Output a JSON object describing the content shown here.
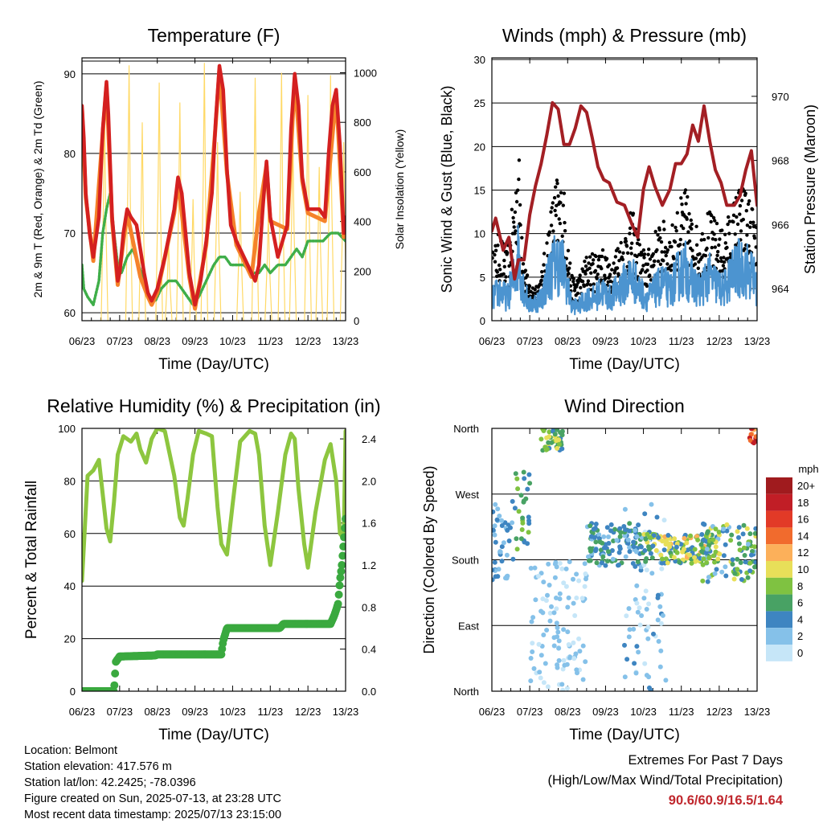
{
  "footer": {
    "location": "Location: Belmont",
    "elevation": "Station elevation: 417.576 m",
    "latlon": "Station lat/lon: 42.2425; -78.0396",
    "created": "Figure created on Sun, 2025-07-13, at 23:28 UTC",
    "recent": "Most recent data timestamp: 2025/07/13 23:15:00"
  },
  "extremes": {
    "title": "Extremes For Past 7 Days",
    "subtitle": "(High/Low/Max Wind/Total Precipitation)",
    "values": "90.6/60.9/16.5/1.64",
    "value_color": "#c0272d"
  },
  "chart_data": [
    {
      "type": "line",
      "title": "Temperature (F)",
      "xlabel": "Time (Day/UTC)",
      "ylabel": "2m & 9m T (Red, Orange) & 2m Td (Green)",
      "y2label": "Solar Insolation (Yellow)",
      "xlim": [
        6,
        13
      ],
      "xticks": [
        "06/23",
        "07/23",
        "08/23",
        "09/23",
        "10/23",
        "11/23",
        "12/23",
        "13/23"
      ],
      "ylim": [
        59,
        92
      ],
      "yticks": [
        60,
        70,
        80,
        90
      ],
      "y2lim": [
        0,
        1060
      ],
      "y2ticks": [
        0,
        200,
        400,
        600,
        800,
        1000
      ],
      "grid": "horizontal",
      "series": [
        {
          "name": "2m T",
          "color": "#d42020",
          "axis": "left",
          "x": [
            6.0,
            6.05,
            6.1,
            6.2,
            6.3,
            6.45,
            6.55,
            6.65,
            6.7,
            6.8,
            6.95,
            7.0,
            7.1,
            7.2,
            7.3,
            7.45,
            7.55,
            7.65,
            7.75,
            7.85,
            8.0,
            8.2,
            8.45,
            8.55,
            8.65,
            8.75,
            8.85,
            9.0,
            9.15,
            9.3,
            9.45,
            9.55,
            9.65,
            9.75,
            9.85,
            9.95,
            10.1,
            10.3,
            10.5,
            10.6,
            10.7,
            10.8,
            10.9,
            11.0,
            11.2,
            11.45,
            11.55,
            11.65,
            11.75,
            11.85,
            12.0,
            12.3,
            12.45,
            12.55,
            12.65,
            12.75,
            12.85,
            12.95,
            13.0
          ],
          "values": [
            86,
            82,
            75,
            70,
            67,
            72,
            83,
            89,
            85,
            72,
            64,
            65,
            70,
            73,
            72,
            71,
            68,
            65,
            62.5,
            61.5,
            63,
            67,
            73,
            77,
            75,
            70,
            65,
            61,
            64,
            69,
            75,
            84,
            91,
            88,
            78,
            71,
            69,
            67,
            65,
            64,
            66,
            73,
            79,
            72,
            67,
            71,
            83,
            90,
            86,
            77,
            73,
            73,
            72,
            80,
            86,
            88,
            81,
            70,
            72
          ]
        },
        {
          "name": "9m T",
          "color": "#f5822a",
          "axis": "left",
          "x": [
            6.0,
            6.1,
            6.3,
            6.55,
            6.65,
            6.8,
            6.95,
            7.2,
            7.55,
            7.75,
            7.85,
            8.0,
            8.45,
            8.55,
            8.85,
            9.0,
            9.3,
            9.55,
            9.65,
            9.85,
            10.1,
            10.5,
            10.7,
            10.9,
            11.0,
            11.45,
            11.65,
            11.85,
            12.0,
            12.45,
            12.75,
            12.95,
            13.0
          ],
          "values": [
            85.5,
            74.5,
            66.5,
            82.5,
            88.5,
            71.5,
            63.5,
            72.5,
            64.5,
            62,
            61,
            62.5,
            72.5,
            76.5,
            64.5,
            60.5,
            68.5,
            83.5,
            90.5,
            77.5,
            68.5,
            64.5,
            72.5,
            78.5,
            71.5,
            70.5,
            89.5,
            76.5,
            72.5,
            71.5,
            87.5,
            69.5,
            71.5
          ]
        },
        {
          "name": "2m Td",
          "color": "#3fae49",
          "axis": "left",
          "x": [
            6.0,
            6.05,
            6.15,
            6.3,
            6.45,
            6.55,
            6.65,
            6.75,
            6.85,
            6.95,
            7.05,
            7.2,
            7.35,
            7.5,
            7.65,
            7.8,
            7.95,
            8.1,
            8.3,
            8.5,
            8.65,
            8.8,
            8.95,
            9.1,
            9.3,
            9.5,
            9.65,
            9.8,
            9.95,
            10.1,
            10.3,
            10.5,
            10.7,
            10.85,
            11.0,
            11.2,
            11.4,
            11.55,
            11.7,
            11.85,
            12.0,
            12.2,
            12.4,
            12.6,
            12.8,
            13.0
          ],
          "values": [
            66,
            63,
            62,
            61,
            64,
            70,
            73,
            75,
            70,
            66,
            65,
            67,
            68,
            66,
            64,
            62,
            61.5,
            63,
            64,
            64,
            63,
            62,
            61,
            62,
            64,
            66,
            67,
            67,
            66,
            66,
            66,
            65,
            65,
            66,
            65,
            66,
            66,
            67,
            68,
            67,
            69,
            69,
            69,
            70,
            70,
            69
          ]
        },
        {
          "name": "Solar Insolation",
          "color": "#ffd966",
          "axis": "right",
          "peaks_x": [
            6.6,
            7.25,
            7.6,
            8.05,
            8.3,
            8.6,
            8.95,
            9.25,
            9.6,
            10.2,
            10.6,
            10.95,
            11.3,
            11.6,
            12.0,
            12.3,
            12.6,
            12.95
          ],
          "peaks": [
            870,
            1030,
            800,
            960,
            330,
            880,
            490,
            1040,
            720,
            520,
            980,
            440,
            1000,
            760,
            910,
            620,
            990,
            720
          ]
        }
      ]
    },
    {
      "type": "line",
      "title": "Winds (mph) & Pressure (mb)",
      "xlabel": "Time (Day/UTC)",
      "ylabel": "Sonic Wind & Gust (Blue, Black)",
      "y2label": "Station Pressure (Maroon)",
      "xlim": [
        6,
        13
      ],
      "xticks": [
        "06/23",
        "07/23",
        "08/23",
        "09/23",
        "10/23",
        "11/23",
        "12/23",
        "13/23"
      ],
      "ylim": [
        0,
        30
      ],
      "yticks": [
        0,
        5,
        10,
        15,
        20,
        25,
        30
      ],
      "y2lim": [
        963.0,
        971.2
      ],
      "y2ticks": [
        964,
        966,
        968,
        970
      ],
      "grid": "horizontal",
      "series": [
        {
          "name": "Sonic Wind",
          "color": "#4c94d0",
          "axis": "left",
          "x": [
            6.0,
            6.2,
            6.4,
            6.6,
            6.7,
            6.85,
            7.0,
            7.3,
            7.5,
            7.7,
            7.9,
            8.1,
            8.3,
            8.5,
            8.7,
            8.9,
            9.1,
            9.3,
            9.5,
            9.7,
            9.9,
            10.1,
            10.3,
            10.5,
            10.7,
            10.9,
            11.1,
            11.3,
            11.5,
            11.7,
            11.9,
            12.1,
            12.3,
            12.5,
            12.7,
            12.9,
            13.0
          ],
          "values": [
            3,
            4,
            3,
            6,
            9,
            4,
            2,
            3,
            6,
            8,
            7,
            2,
            2,
            3,
            3,
            4,
            3,
            4,
            5,
            6,
            4,
            3,
            4,
            5,
            4,
            6,
            7,
            5,
            4,
            6,
            5,
            4,
            6,
            7,
            7,
            6,
            4
          ]
        },
        {
          "name": "Gust",
          "color": "#000000",
          "axis": "left",
          "x": [
            6.0,
            6.2,
            6.4,
            6.6,
            6.7,
            6.85,
            7.0,
            7.3,
            7.5,
            7.7,
            7.9,
            8.1,
            8.3,
            8.5,
            8.7,
            8.9,
            9.1,
            9.3,
            9.5,
            9.7,
            9.9,
            10.1,
            10.3,
            10.5,
            10.7,
            10.9,
            11.1,
            11.3,
            11.5,
            11.7,
            11.9,
            12.1,
            12.3,
            12.5,
            12.7,
            12.9,
            13.0
          ],
          "values": [
            6,
            8,
            6,
            12,
            16,
            6,
            3,
            4,
            9,
            13,
            12,
            4,
            4,
            6,
            6,
            7,
            5,
            7,
            8,
            10,
            7,
            6,
            8,
            9,
            8,
            10,
            12,
            9,
            8,
            10,
            9,
            8,
            10,
            12,
            12,
            10,
            8
          ]
        },
        {
          "name": "Station Pressure",
          "color": "#a31f24",
          "axis": "right",
          "x": [
            6.0,
            6.1,
            6.3,
            6.45,
            6.6,
            6.7,
            6.85,
            7.0,
            7.15,
            7.3,
            7.45,
            7.6,
            7.75,
            7.9,
            8.05,
            8.2,
            8.35,
            8.5,
            8.65,
            8.8,
            8.95,
            9.1,
            9.3,
            9.5,
            9.7,
            9.85,
            10.0,
            10.15,
            10.3,
            10.5,
            10.7,
            10.85,
            11.0,
            11.15,
            11.3,
            11.45,
            11.6,
            11.75,
            11.9,
            12.05,
            12.2,
            12.4,
            12.55,
            12.7,
            12.85,
            13.0
          ],
          "values": [
            965.8,
            966.2,
            965.2,
            965.6,
            964.3,
            964.9,
            964.9,
            966.3,
            967.2,
            967.9,
            968.8,
            969.8,
            969.6,
            968.5,
            968.5,
            969.0,
            969.7,
            969.5,
            968.7,
            967.8,
            967.4,
            967.3,
            966.7,
            966.6,
            966.0,
            965.6,
            967.1,
            967.8,
            967.2,
            966.6,
            967.1,
            967.9,
            967.9,
            968.2,
            969.1,
            968.6,
            969.7,
            968.6,
            967.7,
            967.3,
            966.6,
            966.6,
            966.9,
            967.7,
            968.3,
            966.6
          ]
        }
      ]
    },
    {
      "type": "line",
      "title": "Relative Humidity (%) & Precipitation (in)",
      "xlabel": "Time (Day/UTC)",
      "ylabel": "Percent & Total Rainfall",
      "xlim": [
        6,
        13
      ],
      "xticks": [
        "06/23",
        "07/23",
        "08/23",
        "09/23",
        "10/23",
        "11/23",
        "12/23",
        "13/23"
      ],
      "ylim": [
        0,
        100
      ],
      "yticks": [
        0,
        20,
        40,
        60,
        80,
        100
      ],
      "y2lim": [
        0,
        2.5
      ],
      "y2ticks": [
        "0.0",
        "0.4",
        "0.8",
        "1.2",
        "1.6",
        "2.0",
        "2.4"
      ],
      "grid": "horizontal",
      "series": [
        {
          "name": "Relative Humidity",
          "color": "#8dc63f",
          "axis": "left",
          "x": [
            6.0,
            6.05,
            6.15,
            6.3,
            6.45,
            6.55,
            6.65,
            6.75,
            6.85,
            6.95,
            7.1,
            7.3,
            7.45,
            7.55,
            7.7,
            7.85,
            8.0,
            8.2,
            8.45,
            8.6,
            8.7,
            8.8,
            8.95,
            9.1,
            9.3,
            9.45,
            9.6,
            9.7,
            9.85,
            10.0,
            10.2,
            10.45,
            10.6,
            10.7,
            10.85,
            11.0,
            11.2,
            11.4,
            11.55,
            11.65,
            11.75,
            11.9,
            12.0,
            12.2,
            12.45,
            12.6,
            12.75,
            12.85,
            12.95,
            13.0
          ],
          "values": [
            42,
            55,
            82,
            84,
            88,
            75,
            62,
            57,
            72,
            90,
            97,
            95,
            98,
            92,
            87,
            96,
            100,
            99,
            82,
            66,
            63,
            73,
            90,
            99,
            98,
            97,
            70,
            56,
            52,
            71,
            95,
            99,
            98,
            90,
            63,
            48,
            68,
            90,
            98,
            96,
            77,
            56,
            47,
            68,
            88,
            94,
            80,
            60,
            58,
            99
          ]
        },
        {
          "name": "Total Rainfall",
          "color": "#3aa93f",
          "axis": "right",
          "x": [
            6.0,
            6.85,
            6.9,
            7.0,
            7.95,
            8.0,
            9.7,
            9.75,
            9.85,
            10.0,
            11.25,
            11.35,
            11.5,
            12.6,
            12.7,
            12.8,
            12.85,
            12.9,
            12.95,
            13.0
          ],
          "values": [
            0.0,
            0.0,
            0.28,
            0.33,
            0.34,
            0.35,
            0.35,
            0.48,
            0.6,
            0.6,
            0.6,
            0.64,
            0.64,
            0.64,
            0.72,
            0.83,
            1.05,
            1.2,
            1.42,
            1.64
          ]
        }
      ]
    },
    {
      "type": "scatter",
      "title": "Wind Direction",
      "xlabel": "Time (Day/UTC)",
      "ylabel": "Direction (Colored By Speed)",
      "xlim": [
        6,
        13
      ],
      "xticks": [
        "06/23",
        "07/23",
        "08/23",
        "09/23",
        "10/23",
        "11/23",
        "12/23",
        "13/23"
      ],
      "yticks": [
        "North",
        "East",
        "South",
        "West",
        "North"
      ],
      "grid": "horizontal",
      "colorbar": {
        "title": "mph",
        "labels": [
          "0",
          "2",
          "4",
          "6",
          "8",
          "10",
          "12",
          "14",
          "16",
          "18",
          "20+"
        ],
        "colors": [
          "#c6e6f8",
          "#85c1e9",
          "#3e85c1",
          "#48a264",
          "#7fc241",
          "#e8df59",
          "#fcb05a",
          "#f16b2d",
          "#e23a27",
          "#c11e26",
          "#a01b1e"
        ]
      },
      "clusters": [
        {
          "x": [
            6.0,
            6.6
          ],
          "dir": [
            150,
            260
          ],
          "speed": [
            1,
            5
          ]
        },
        {
          "x": [
            6.6,
            7.0
          ],
          "dir": [
            190,
            300
          ],
          "speed": [
            3,
            9
          ]
        },
        {
          "x": [
            7.3,
            7.9
          ],
          "dir": [
            330,
            360
          ],
          "speed": [
            3,
            11
          ]
        },
        {
          "x": [
            7.0,
            8.5
          ],
          "dir": [
            0,
            180
          ],
          "speed": [
            0,
            3
          ]
        },
        {
          "x": [
            8.5,
            10.0
          ],
          "dir": [
            170,
            230
          ],
          "speed": [
            2,
            7
          ]
        },
        {
          "x": [
            9.5,
            10.6
          ],
          "dir": [
            0,
            260
          ],
          "speed": [
            0,
            4
          ]
        },
        {
          "x": [
            10.0,
            12.0
          ],
          "dir": [
            175,
            215
          ],
          "speed": [
            3,
            12
          ]
        },
        {
          "x": [
            11.5,
            13.0
          ],
          "dir": [
            150,
            230
          ],
          "speed": [
            2,
            10
          ]
        },
        {
          "x": [
            12.8,
            13.0
          ],
          "dir": [
            340,
            360
          ],
          "speed": [
            10,
            20
          ]
        }
      ]
    }
  ]
}
